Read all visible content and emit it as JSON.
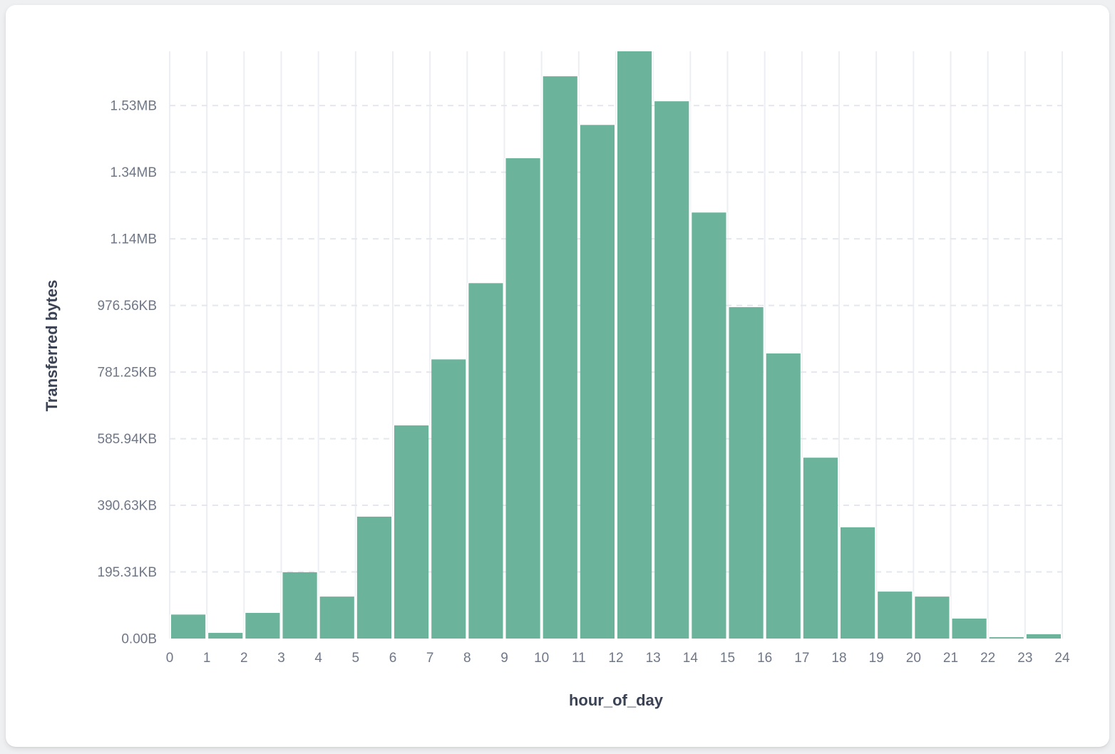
{
  "page": {
    "background_color": "#eff0f2",
    "card_background_color": "#ffffff"
  },
  "chart_data": {
    "type": "bar",
    "title": "",
    "xlabel": "hour_of_day",
    "ylabel": "Transferred bytes",
    "categories": [
      0,
      1,
      2,
      3,
      4,
      5,
      6,
      7,
      8,
      9,
      10,
      11,
      12,
      13,
      14,
      15,
      16,
      17,
      18,
      19,
      20,
      21,
      22,
      23
    ],
    "values": [
      72000,
      17000,
      77000,
      199000,
      126000,
      366000,
      640000,
      838000,
      1067000,
      1442000,
      1688000,
      1542000,
      1763000,
      1613000,
      1279000,
      995000,
      856000,
      543000,
      334000,
      141000,
      126000,
      60000,
      4000,
      13000
    ],
    "values_unit": "bytes",
    "xlim": [
      0,
      24
    ],
    "ylim": [
      0,
      1763000
    ],
    "x_tick_labels": [
      "0",
      "1",
      "2",
      "3",
      "4",
      "5",
      "6",
      "7",
      "8",
      "9",
      "10",
      "11",
      "12",
      "13",
      "14",
      "15",
      "16",
      "17",
      "18",
      "19",
      "20",
      "21",
      "22",
      "23",
      "24"
    ],
    "y_tick_values": [
      0,
      200000,
      400000,
      600000,
      800000,
      1000000,
      1200000,
      1400000,
      1600000
    ],
    "y_tick_labels": [
      "0.00B",
      "195.31KB",
      "390.63KB",
      "585.94KB",
      "781.25KB",
      "976.56KB",
      "1.14MB",
      "1.34MB",
      "1.53MB"
    ],
    "grid": {
      "vertical": "solid",
      "horizontal": "dashed",
      "shown": true
    },
    "legend_position": "none",
    "bar_color": "#6cb39c",
    "bar_gap_color": "#ffffff",
    "grid_vertical_color": "#eceef3",
    "grid_horizontal_color": "#e4e7ed",
    "tick_text_color": "#6f7787",
    "axis_title_color": "#3a4254"
  }
}
